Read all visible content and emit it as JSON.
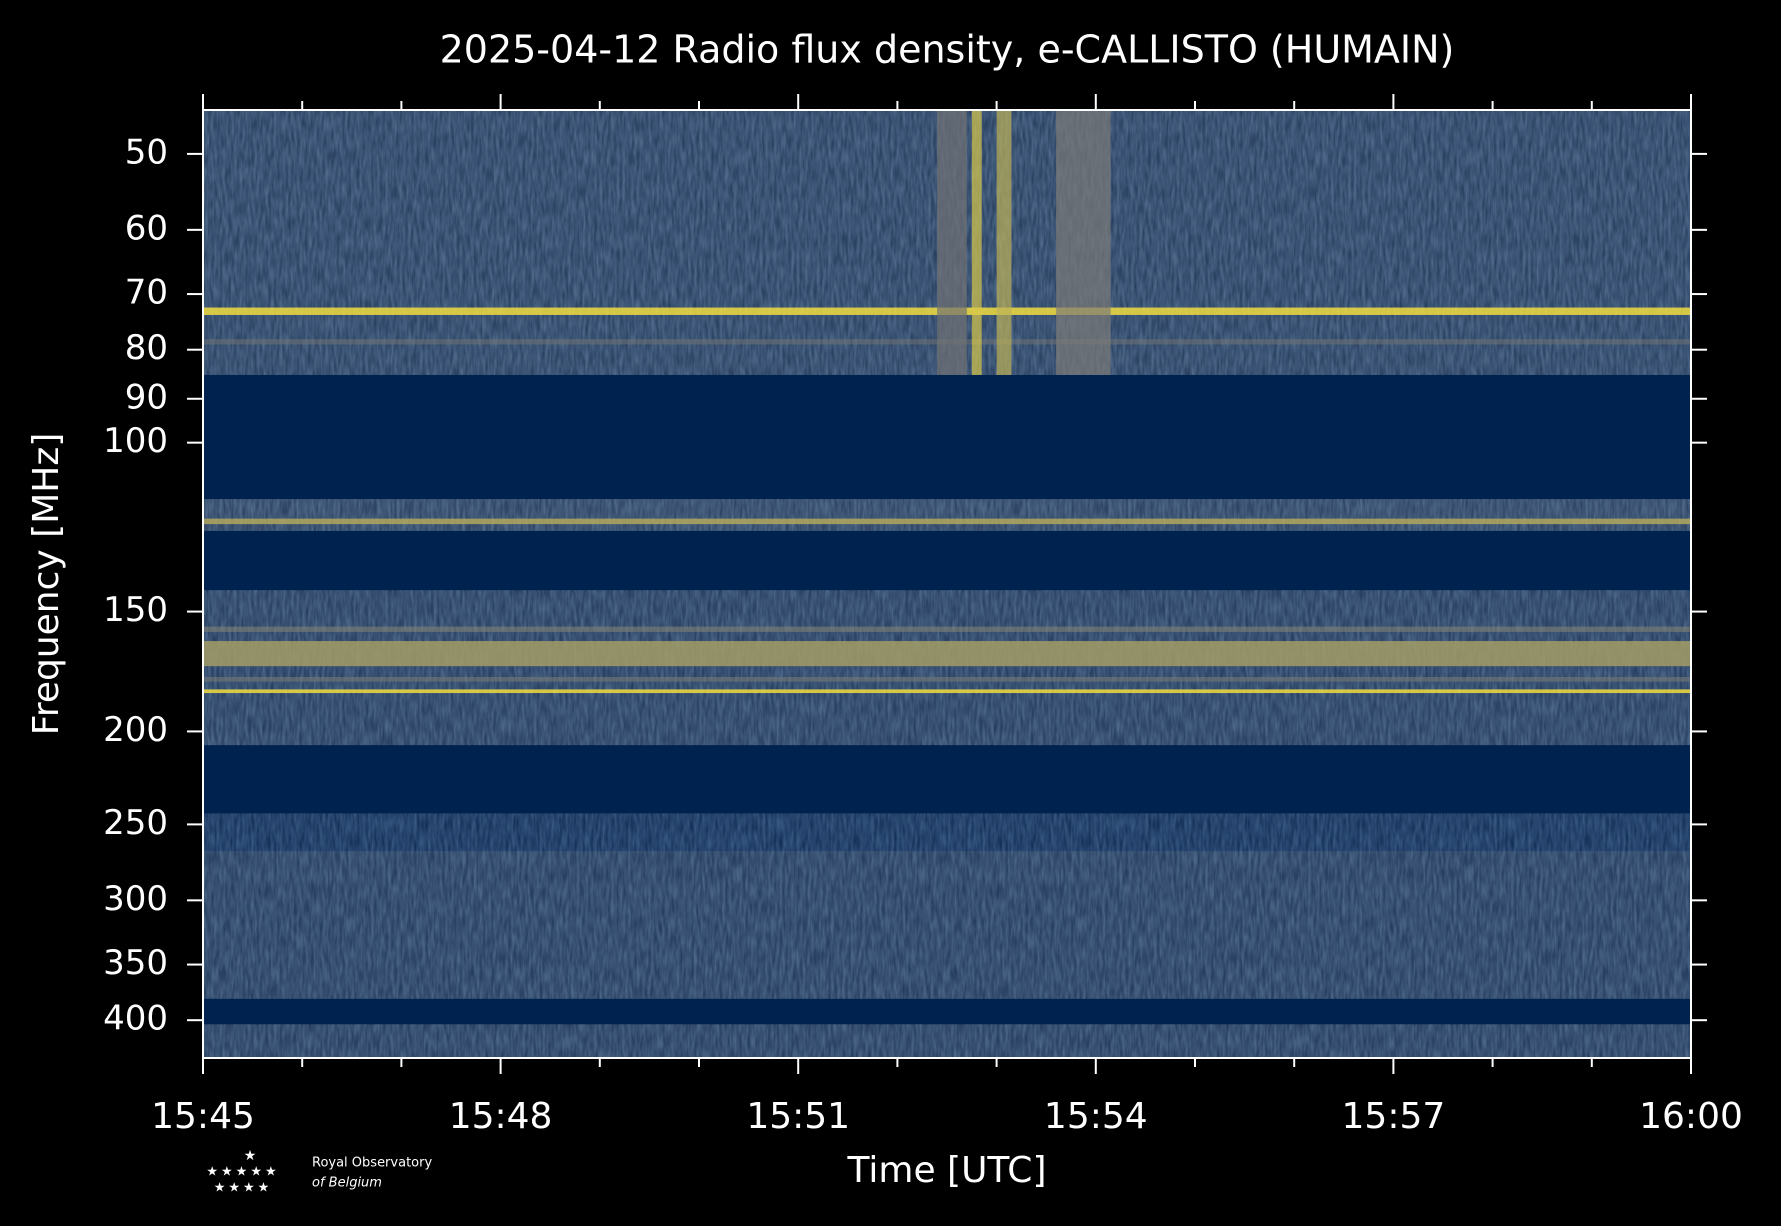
{
  "chart_data": {
    "type": "spectrogram",
    "title": "2025-04-12 Radio flux density, e-CALLISTO (HUMAIN)",
    "xlabel": "Time [UTC]",
    "ylabel": "Frequency [MHz]",
    "xlim": [
      945,
      960
    ],
    "xticks": [
      {
        "value": 945,
        "label": "15:45"
      },
      {
        "value": 948,
        "label": "15:48"
      },
      {
        "value": 951,
        "label": "15:51"
      },
      {
        "value": 954,
        "label": "15:54"
      },
      {
        "value": 957,
        "label": "15:57"
      },
      {
        "value": 960,
        "label": "16:00"
      }
    ],
    "xminorticks": [
      946,
      947,
      949,
      950,
      952,
      953,
      955,
      956,
      958,
      959
    ],
    "ylim": [
      45,
      438
    ],
    "y_scale": "log",
    "y_inverted": true,
    "yticks": [
      50,
      60,
      70,
      80,
      90,
      100,
      150,
      200,
      250,
      300,
      350,
      400
    ],
    "colormap": [
      "#00224e",
      "#7c7b78",
      "#fee838"
    ],
    "bands": [
      {
        "from": 45,
        "to": 85,
        "intensity": 0.28
      },
      {
        "from": 72.3,
        "to": 73.6,
        "intensity": 0.95
      },
      {
        "from": 78,
        "to": 79,
        "intensity": 0.45
      },
      {
        "from": 85,
        "to": 114.5,
        "intensity": 0
      },
      {
        "from": 114.5,
        "to": 123.6,
        "intensity": 0.3
      },
      {
        "from": 120,
        "to": 121.6,
        "intensity": 0.7
      },
      {
        "from": 123.6,
        "to": 142.5,
        "intensity": 0
      },
      {
        "from": 142.5,
        "to": 206.7,
        "intensity": 0.26
      },
      {
        "from": 155.5,
        "to": 157.5,
        "intensity": 0.55
      },
      {
        "from": 161,
        "to": 171,
        "intensity": 0.65
      },
      {
        "from": 175.5,
        "to": 177.5,
        "intensity": 0.5
      },
      {
        "from": 180.8,
        "to": 182.4,
        "intensity": 0.95
      },
      {
        "from": 206.7,
        "to": 243.5,
        "intensity": 0
      },
      {
        "from": 243.5,
        "to": 266.5,
        "intensity": 0.12
      },
      {
        "from": 266.5,
        "to": 380,
        "intensity": 0.25
      },
      {
        "from": 380,
        "to": 404,
        "intensity": 0
      },
      {
        "from": 404,
        "to": 438,
        "intensity": 0.25
      }
    ],
    "events": [
      {
        "from_time": 952.4,
        "to_time": 952.7,
        "from": 45,
        "to": 85,
        "intensity": 0.45
      },
      {
        "from_time": 952.75,
        "to_time": 952.85,
        "from": 45,
        "to": 85,
        "intensity": 0.85
      },
      {
        "from_time": 953.0,
        "to_time": 953.15,
        "from": 45,
        "to": 85,
        "intensity": 0.75
      },
      {
        "from_time": 953.6,
        "to_time": 954.15,
        "from": 45,
        "to": 85,
        "intensity": 0.5
      }
    ],
    "logo": {
      "line1": "Royal Observatory",
      "line2": "of Belgium"
    }
  }
}
